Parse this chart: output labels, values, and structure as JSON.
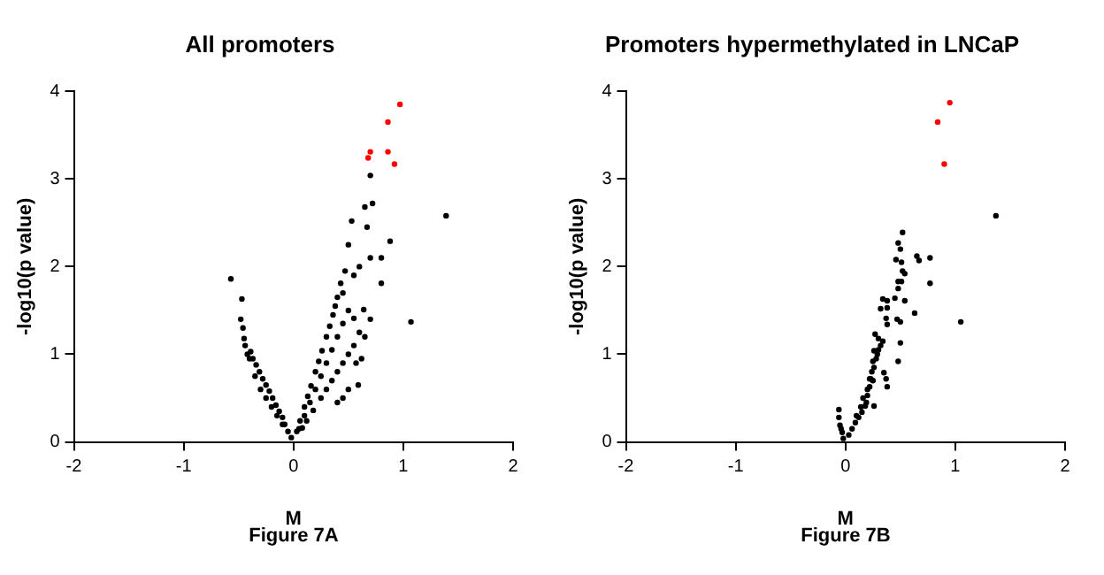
{
  "chart_data": [
    {
      "type": "scatter",
      "title": "All promoters",
      "xlabel": "M",
      "ylabel": "-log10(p value)",
      "annotations": [
        "Figure 7A"
      ],
      "xlim": [
        -2,
        2
      ],
      "xticks": [
        -2,
        -1,
        0,
        1,
        2
      ],
      "ylim": [
        0,
        4
      ],
      "yticks": [
        0,
        1,
        2,
        3,
        4
      ],
      "grid": false,
      "legend": false,
      "marker": "circle",
      "series": [
        {
          "color": "#000000",
          "x": [
            -0.02,
            -0.05,
            -0.08,
            -0.1,
            -0.13,
            -0.16,
            -0.19,
            -0.22,
            -0.25,
            -0.28,
            -0.31,
            -0.34,
            -0.37,
            -0.39,
            -0.35,
            -0.3,
            -0.25,
            -0.2,
            -0.15,
            -0.1,
            -0.4,
            -0.42,
            -0.45,
            -0.48,
            -0.47,
            -0.57,
            -0.46,
            -0.44,
            0.03,
            0.06,
            0.1,
            0.13,
            0.16,
            0.2,
            0.23,
            0.26,
            0.3,
            0.33,
            0.36,
            0.38,
            0.4,
            0.43,
            0.05,
            0.1,
            0.15,
            0.2,
            0.25,
            0.3,
            0.35,
            0.4,
            0.45,
            0.5,
            0.08,
            0.12,
            0.18,
            0.25,
            0.3,
            0.35,
            0.4,
            0.45,
            0.5,
            0.55,
            0.6,
            0.59,
            0.57,
            0.55,
            0.64,
            0.8,
            0.8,
            0.7,
            0.53,
            0.65,
            0.72,
            0.67,
            0.5,
            0.47,
            0.55,
            0.6,
            0.45,
            0.7,
            0.88,
            1.39,
            1.07,
            0.65,
            0.7,
            0.62,
            0.5,
            0.45,
            0.4
          ],
          "values": [
            0.05,
            0.12,
            0.2,
            0.28,
            0.35,
            0.42,
            0.5,
            0.58,
            0.65,
            0.72,
            0.8,
            0.88,
            0.95,
            1.03,
            0.75,
            0.6,
            0.5,
            0.4,
            0.3,
            0.2,
            0.95,
            1.0,
            1.18,
            1.4,
            1.63,
            1.86,
            1.3,
            1.1,
            0.12,
            0.24,
            0.4,
            0.52,
            0.64,
            0.8,
            0.92,
            1.04,
            1.2,
            1.32,
            1.45,
            1.55,
            1.65,
            1.81,
            0.15,
            0.3,
            0.45,
            0.6,
            0.75,
            0.9,
            1.05,
            1.2,
            1.35,
            1.5,
            0.16,
            0.24,
            0.36,
            0.5,
            0.6,
            0.7,
            0.8,
            0.9,
            1.0,
            1.1,
            1.25,
            0.65,
            0.9,
            1.41,
            1.51,
            1.81,
            2.1,
            2.1,
            2.52,
            2.68,
            2.72,
            2.45,
            2.25,
            1.95,
            1.9,
            2.0,
            1.7,
            3.04,
            2.29,
            2.58,
            1.37,
            1.2,
            1.4,
            0.95,
            0.6,
            0.5,
            0.45
          ]
        },
        {
          "color": "#ff0000",
          "x": [
            0.97,
            0.86,
            0.7,
            0.68,
            0.86,
            0.92
          ],
          "values": [
            3.85,
            3.65,
            3.31,
            3.24,
            3.31,
            3.17
          ]
        }
      ]
    },
    {
      "type": "scatter",
      "title": "Promoters hypermethylated in LNCaP",
      "xlabel": "M",
      "ylabel": "-log10(p value)",
      "annotations": [
        "Figure 7B"
      ],
      "xlim": [
        -2,
        2
      ],
      "xticks": [
        -2,
        -1,
        0,
        1,
        2
      ],
      "ylim": [
        0,
        4
      ],
      "yticks": [
        0,
        1,
        2,
        3,
        4
      ],
      "grid": false,
      "legend": false,
      "marker": "circle",
      "series": [
        {
          "color": "#000000",
          "x": [
            1.37,
            1.05,
            0.52,
            0.48,
            0.5,
            0.65,
            0.67,
            0.77,
            0.46,
            0.51,
            0.52,
            0.54,
            0.77,
            0.48,
            0.51,
            0.48,
            0.34,
            0.38,
            0.45,
            0.54,
            0.32,
            0.38,
            0.63,
            0.37,
            0.47,
            0.5,
            0.38,
            0.27,
            0.3,
            0.34,
            0.5,
            0.26,
            0.48,
            0.25,
            0.35,
            0.37,
            0.38,
            0.26,
            0.23,
            0.22,
            0.2,
            0.18,
            0.15,
            0.12,
            0.09,
            0.06,
            0.03,
            -0.02,
            -0.03,
            -0.05,
            -0.06,
            -0.06,
            -0.04,
            0.1,
            0.14,
            0.16,
            0.2,
            0.22,
            0.24,
            0.26,
            0.28,
            0.3,
            0.32,
            0.29,
            0.19,
            0.25
          ],
          "values": [
            2.58,
            1.37,
            2.39,
            2.27,
            2.2,
            2.12,
            2.07,
            2.1,
            2.08,
            2.05,
            1.95,
            1.92,
            1.81,
            1.83,
            1.83,
            1.75,
            1.63,
            1.61,
            1.64,
            1.61,
            1.52,
            1.53,
            1.47,
            1.41,
            1.4,
            1.37,
            1.34,
            1.23,
            1.18,
            1.15,
            1.13,
            1.04,
            0.92,
            0.92,
            0.79,
            0.72,
            0.63,
            0.41,
            0.72,
            0.63,
            0.53,
            0.41,
            0.34,
            0.28,
            0.22,
            0.15,
            0.08,
            0.04,
            0.11,
            0.19,
            0.28,
            0.37,
            0.15,
            0.3,
            0.4,
            0.5,
            0.6,
            0.72,
            0.8,
            0.85,
            0.95,
            1.05,
            1.1,
            1.0,
            0.45,
            0.7
          ]
        },
        {
          "color": "#ff0000",
          "x": [
            0.95,
            0.84,
            0.9
          ],
          "values": [
            3.87,
            3.65,
            3.17
          ]
        }
      ]
    }
  ]
}
